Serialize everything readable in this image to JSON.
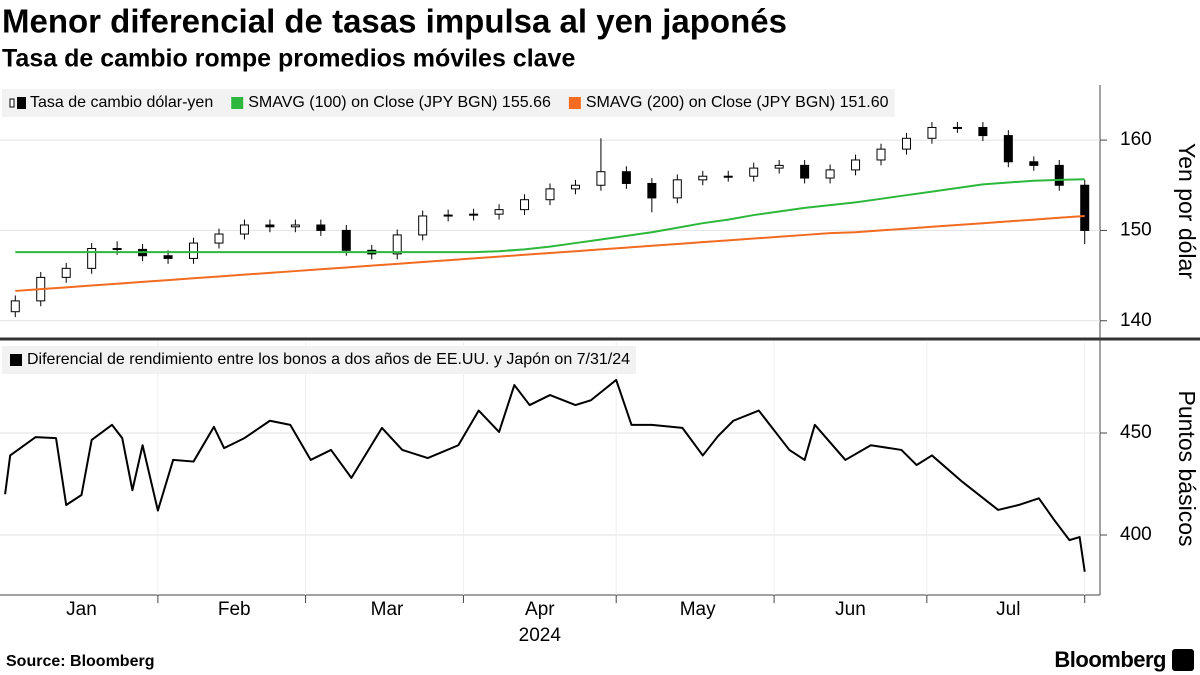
{
  "chart_data": [
    {
      "type": "candlestick",
      "title": "Menor diferencial de tasas impulsa al yen japonés",
      "subtitle": "Tasa de cambio rompe promedios móviles clave",
      "name": "Tasa de cambio dólar-yen",
      "ylabel": "Yen por dólar",
      "xlim": [
        0,
        216
      ],
      "ylim": [
        138.2,
        166.1
      ],
      "yticks": [
        140,
        150,
        160
      ],
      "x": [
        3,
        8,
        13,
        18,
        23,
        28,
        33,
        38,
        43,
        48,
        53,
        58,
        63,
        68,
        73,
        78,
        83,
        88,
        93,
        98,
        103,
        108,
        113,
        118,
        123,
        128,
        133,
        138,
        143,
        148,
        153,
        158,
        163,
        168,
        173,
        178,
        183,
        188,
        193,
        198,
        203,
        208,
        213
      ],
      "open": [
        141.0,
        142.2,
        144.8,
        145.8,
        148.0,
        147.9,
        147.2,
        146.9,
        148.6,
        149.6,
        150.6,
        150.4,
        150.6,
        150.0,
        147.8,
        147.4,
        149.5,
        151.6,
        151.7,
        151.8,
        152.3,
        153.4,
        154.6,
        155.0,
        156.5,
        155.2,
        153.6,
        155.6,
        156.0,
        156.0,
        156.9,
        157.2,
        155.8,
        156.7,
        157.8,
        159.0,
        160.2,
        161.4,
        161.4,
        160.5,
        157.6,
        157.2,
        155.0
      ],
      "high": [
        142.8,
        145.4,
        146.4,
        148.6,
        148.8,
        148.5,
        147.8,
        149.2,
        150.2,
        151.2,
        151.2,
        151.2,
        151.2,
        150.6,
        148.4,
        150.1,
        152.2,
        152.3,
        152.4,
        152.9,
        154.0,
        155.2,
        155.6,
        160.2,
        157.1,
        155.8,
        156.2,
        156.6,
        156.6,
        157.5,
        157.8,
        157.8,
        157.3,
        158.4,
        159.6,
        160.8,
        162.0,
        162.0,
        162.0,
        161.1,
        158.2,
        157.8,
        155.6
      ],
      "low": [
        140.4,
        141.6,
        144.2,
        145.2,
        147.3,
        146.6,
        146.3,
        146.3,
        148.0,
        149.0,
        149.8,
        149.8,
        149.4,
        147.2,
        146.8,
        146.8,
        148.9,
        151.0,
        151.1,
        151.2,
        151.7,
        152.8,
        154.0,
        154.4,
        154.6,
        152.0,
        153.0,
        155.0,
        155.4,
        155.4,
        156.3,
        155.2,
        155.2,
        156.1,
        157.2,
        158.4,
        159.6,
        160.8,
        159.9,
        157.0,
        156.6,
        154.4,
        148.5
      ],
      "close": [
        142.2,
        144.8,
        145.8,
        148.0,
        147.9,
        147.2,
        146.9,
        148.6,
        149.6,
        150.6,
        150.4,
        150.6,
        150.0,
        147.8,
        147.4,
        149.5,
        151.6,
        151.7,
        151.8,
        152.3,
        153.4,
        154.6,
        155.0,
        156.5,
        155.2,
        153.6,
        155.6,
        156.0,
        156.0,
        156.9,
        157.2,
        155.8,
        156.7,
        157.8,
        159.0,
        160.2,
        161.4,
        161.4,
        160.5,
        157.6,
        157.2,
        155.0,
        150.0
      ],
      "up_color": "#ffffff",
      "down_color": "#000000",
      "series": [
        {
          "name": "SMAVG (100)  on Close (JPY BGN) 155.66",
          "color": "#2db83d",
          "values": [
            147.6,
            147.6,
            147.6,
            147.6,
            147.6,
            147.6,
            147.6,
            147.6,
            147.6,
            147.6,
            147.6,
            147.6,
            147.6,
            147.6,
            147.6,
            147.6,
            147.6,
            147.6,
            147.6,
            147.7,
            147.9,
            148.2,
            148.6,
            149.0,
            149.4,
            149.8,
            150.3,
            150.8,
            151.2,
            151.7,
            152.1,
            152.5,
            152.8,
            153.1,
            153.5,
            153.9,
            154.3,
            154.7,
            155.1,
            155.3,
            155.5,
            155.6,
            155.66
          ]
        },
        {
          "name": "SMAVG (200)  on Close (JPY BGN) 151.60",
          "color": "#f26b21",
          "values": [
            143.3,
            143.5,
            143.7,
            143.9,
            144.1,
            144.3,
            144.5,
            144.7,
            144.9,
            145.1,
            145.3,
            145.5,
            145.7,
            145.9,
            146.1,
            146.3,
            146.5,
            146.7,
            146.9,
            147.1,
            147.3,
            147.5,
            147.7,
            147.9,
            148.1,
            148.3,
            148.5,
            148.7,
            148.9,
            149.1,
            149.3,
            149.5,
            149.7,
            149.8,
            150.0,
            150.2,
            150.4,
            150.6,
            150.8,
            151.0,
            151.2,
            151.4,
            151.6
          ]
        }
      ],
      "grid": true
    },
    {
      "type": "line",
      "ylabel": "Puntos básicos",
      "xlabel": "2024",
      "xlim": [
        0,
        216
      ],
      "ylim": [
        370.6,
        494.6
      ],
      "yticks": [
        400,
        450
      ],
      "xticks": [
        {
          "value": 16,
          "label": "Jan"
        },
        {
          "value": 46,
          "label": "Feb"
        },
        {
          "value": 76,
          "label": "Mar"
        },
        {
          "value": 106,
          "label": "Apr"
        },
        {
          "value": 137,
          "label": "May"
        },
        {
          "value": 167,
          "label": "Jun"
        },
        {
          "value": 198,
          "label": "Jul"
        }
      ],
      "xminorticks": [
        31,
        60,
        91,
        121,
        152,
        182,
        213
      ],
      "x": [
        1,
        2,
        7,
        11,
        13,
        16,
        18,
        22,
        24,
        26,
        28,
        31,
        34,
        38,
        42,
        44,
        48,
        53,
        57,
        61,
        65,
        69,
        75,
        79,
        84,
        90,
        94,
        98,
        101,
        104,
        108,
        113,
        116,
        121,
        124,
        128,
        134,
        138,
        141,
        144,
        149,
        155,
        158,
        160,
        166,
        171,
        177,
        180,
        183,
        189,
        194,
        196,
        200,
        204,
        207,
        210,
        212,
        213
      ],
      "series": [
        {
          "name": "Diferencial de rendimiento entre los bonos a dos años de EE.UU. y Japón on 7/31/24",
          "color": "#000000",
          "values": [
            420,
            439,
            448,
            447.5,
            414.7,
            419.6,
            446.6,
            454,
            447.5,
            422,
            444,
            412,
            436.8,
            436,
            453,
            442.6,
            447.5,
            456,
            454,
            436.8,
            441.7,
            428,
            452.5,
            441.7,
            437.7,
            444,
            461,
            450.5,
            473.5,
            463.7,
            468.6,
            463.7,
            466,
            476,
            454,
            454,
            452.5,
            439,
            448.5,
            456,
            461,
            441.7,
            436.8,
            454,
            436.8,
            444,
            441.7,
            434.3,
            439,
            426,
            416.2,
            412.3,
            414.7,
            418,
            407.4,
            397.5,
            399,
            382
          ]
        }
      ],
      "grid": true
    }
  ],
  "source": "Source: Bloomberg",
  "brand": "Bloomberg"
}
